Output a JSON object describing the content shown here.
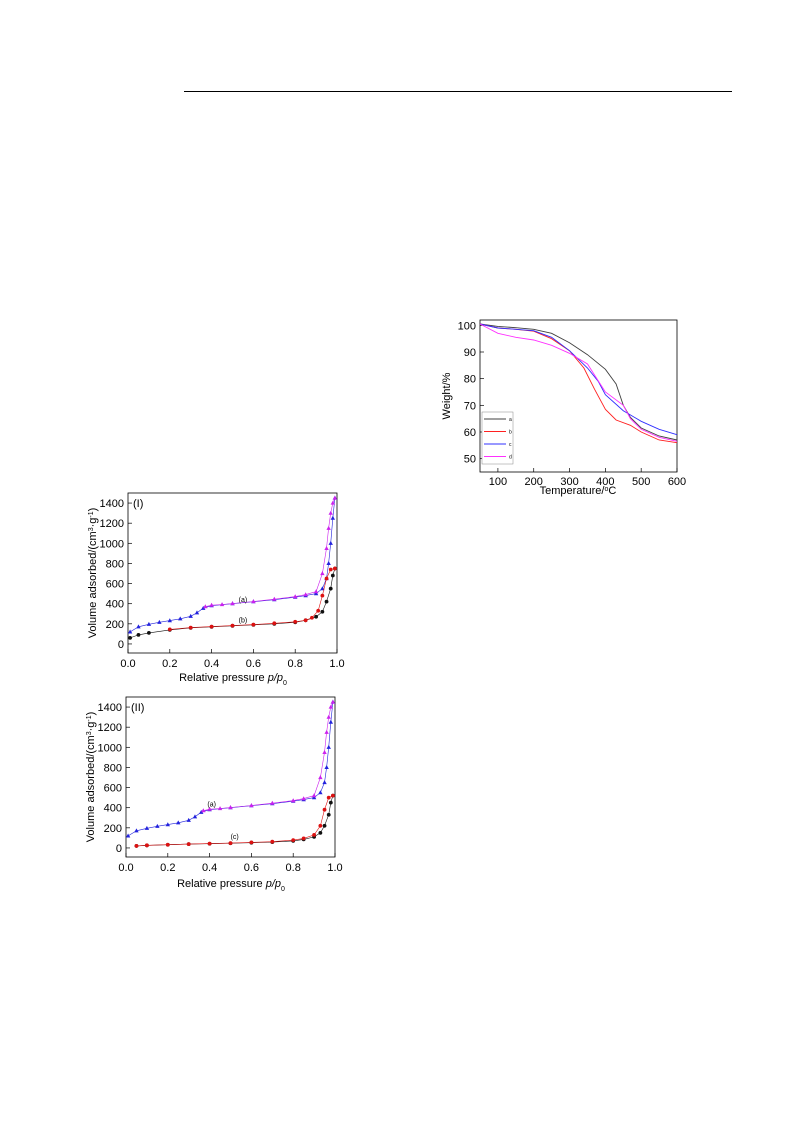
{
  "page": {
    "header_rule": true
  },
  "chart_data": [
    {
      "id": "tga",
      "type": "line",
      "xlabel_main": "Temperature/",
      "xlabel_sup": "o",
      "xlabel_unit": "C",
      "ylabel": "Weight/%",
      "xlim": [
        50,
        600
      ],
      "ylim": [
        45,
        102
      ],
      "xticks": [
        100,
        200,
        300,
        400,
        500,
        600
      ],
      "yticks": [
        50,
        60,
        70,
        80,
        90,
        100
      ],
      "legend_position": "bottom-left",
      "series": [
        {
          "name": "a",
          "color": "#404040",
          "x": [
            50,
            100,
            150,
            200,
            250,
            300,
            350,
            400,
            430,
            450,
            470,
            500,
            550,
            600
          ],
          "y": [
            100.5,
            99.6,
            99.1,
            98.5,
            97.0,
            93.5,
            89.0,
            83.5,
            78.0,
            70.0,
            65.5,
            61.5,
            58.5,
            57.0
          ]
        },
        {
          "name": "b",
          "color": "#ff2020",
          "x": [
            50,
            100,
            150,
            200,
            250,
            300,
            340,
            370,
            400,
            430,
            470,
            500,
            550,
            600
          ],
          "y": [
            100.5,
            99.0,
            98.5,
            97.8,
            95.0,
            90.5,
            84.0,
            76.0,
            68.5,
            64.5,
            62.5,
            60.0,
            57.0,
            56.0
          ]
        },
        {
          "name": "c",
          "color": "#3030ff",
          "x": [
            50,
            100,
            150,
            200,
            250,
            300,
            350,
            380,
            400,
            450,
            500,
            550,
            600
          ],
          "y": [
            100.5,
            99.0,
            98.5,
            98.0,
            95.5,
            90.5,
            84.0,
            79.0,
            74.0,
            68.0,
            64.0,
            61.0,
            59.0
          ]
        },
        {
          "name": "d",
          "color": "#ff30ff",
          "x": [
            50,
            100,
            150,
            200,
            250,
            300,
            350,
            400,
            450,
            470,
            500,
            550,
            600
          ],
          "y": [
            100.5,
            97.0,
            95.5,
            94.5,
            92.5,
            89.5,
            85.5,
            75.0,
            70.0,
            65.0,
            61.0,
            58.0,
            56.5
          ]
        }
      ]
    },
    {
      "id": "bet-1",
      "type": "scatter",
      "panel_label": "(I)",
      "xlabel_main": "Relative pressure ",
      "xlabel_italic": "p/p",
      "xlabel_sub": "0",
      "ylabel_main": "Volume adsorbed/(cm",
      "ylabel_sup1": "3",
      "ylabel_mid": "·g",
      "ylabel_sup2": "-1",
      "ylabel_end": ")",
      "xlim": [
        0,
        1.0
      ],
      "ylim": [
        -90,
        1500
      ],
      "xticks": [
        0.0,
        0.2,
        0.4,
        0.6,
        0.8,
        1.0
      ],
      "xtick_labels": [
        "0.0",
        "0.2",
        "0.4",
        "0.6",
        "0.8",
        "1.0"
      ],
      "yticks": [
        0,
        200,
        400,
        600,
        800,
        1000,
        1200,
        1400
      ],
      "annotations": [
        {
          "text": "(a)",
          "x": 0.55,
          "y": 415
        },
        {
          "text": "(b)",
          "x": 0.55,
          "y": 215
        }
      ],
      "series": [
        {
          "name": "(a) adsorption",
          "color": "#2222dd",
          "x": [
            0.01,
            0.05,
            0.1,
            0.15,
            0.2,
            0.25,
            0.3,
            0.33,
            0.36,
            0.4,
            0.5,
            0.6,
            0.7,
            0.8,
            0.85,
            0.9,
            0.93,
            0.95,
            0.96,
            0.97,
            0.98,
            0.99
          ],
          "y": [
            120,
            170,
            195,
            215,
            232,
            250,
            275,
            310,
            355,
            380,
            400,
            420,
            440,
            465,
            480,
            500,
            550,
            650,
            800,
            1000,
            1250,
            1450
          ]
        },
        {
          "name": "(a) desorption",
          "color": "#cc22ee",
          "x": [
            0.99,
            0.98,
            0.97,
            0.96,
            0.95,
            0.93,
            0.9,
            0.85,
            0.8,
            0.7,
            0.6,
            0.5,
            0.45,
            0.4,
            0.37
          ],
          "y": [
            1450,
            1400,
            1300,
            1150,
            950,
            700,
            520,
            490,
            470,
            445,
            422,
            402,
            392,
            385,
            370
          ]
        },
        {
          "name": "(b) adsorption",
          "color": "#111111",
          "x": [
            0.01,
            0.05,
            0.1,
            0.2,
            0.3,
            0.4,
            0.5,
            0.6,
            0.7,
            0.8,
            0.85,
            0.9,
            0.93,
            0.95,
            0.97,
            0.98,
            0.99
          ],
          "y": [
            60,
            90,
            110,
            140,
            160,
            170,
            180,
            190,
            200,
            215,
            235,
            270,
            320,
            420,
            550,
            680,
            750
          ]
        },
        {
          "name": "(b) desorption",
          "color": "#dd1111",
          "x": [
            0.99,
            0.97,
            0.95,
            0.93,
            0.91,
            0.88,
            0.85,
            0.8,
            0.7,
            0.6,
            0.5,
            0.4,
            0.3,
            0.2
          ],
          "y": [
            750,
            740,
            650,
            480,
            330,
            260,
            235,
            220,
            205,
            192,
            182,
            172,
            162,
            145
          ]
        }
      ]
    },
    {
      "id": "bet-2",
      "type": "scatter",
      "panel_label": "(II)",
      "xlabel_main": "Relative pressure ",
      "xlabel_italic": "p/p",
      "xlabel_sub": "0",
      "ylabel_main": "Volume adsorbed/(cm",
      "ylabel_sup1": "3",
      "ylabel_mid": "·g",
      "ylabel_sup2": "-1",
      "ylabel_end": ")",
      "xlim": [
        0,
        1.0
      ],
      "ylim": [
        -90,
        1500
      ],
      "xticks": [
        0.0,
        0.2,
        0.4,
        0.6,
        0.8,
        1.0
      ],
      "xtick_labels": [
        "0.0",
        "0.2",
        "0.4",
        "0.6",
        "0.8",
        "1.0"
      ],
      "yticks": [
        0,
        200,
        400,
        600,
        800,
        1000,
        1200,
        1400
      ],
      "annotations": [
        {
          "text": "(a)",
          "x": 0.41,
          "y": 410
        },
        {
          "text": "(c)",
          "x": 0.52,
          "y": 90
        }
      ],
      "series": [
        {
          "name": "(a) adsorption",
          "color": "#2222dd",
          "x": [
            0.01,
            0.05,
            0.1,
            0.15,
            0.2,
            0.25,
            0.3,
            0.33,
            0.36,
            0.4,
            0.5,
            0.6,
            0.7,
            0.8,
            0.85,
            0.9,
            0.93,
            0.95,
            0.96,
            0.97,
            0.98,
            0.99
          ],
          "y": [
            120,
            170,
            195,
            215,
            232,
            250,
            275,
            310,
            355,
            380,
            400,
            420,
            440,
            465,
            480,
            500,
            550,
            650,
            800,
            1000,
            1250,
            1450
          ]
        },
        {
          "name": "(a) desorption",
          "color": "#cc22ee",
          "x": [
            0.99,
            0.98,
            0.97,
            0.96,
            0.95,
            0.93,
            0.9,
            0.85,
            0.8,
            0.7,
            0.6,
            0.5,
            0.45,
            0.4,
            0.37
          ],
          "y": [
            1450,
            1400,
            1300,
            1150,
            950,
            700,
            520,
            490,
            470,
            445,
            422,
            402,
            392,
            385,
            370
          ]
        },
        {
          "name": "(c) adsorption",
          "color": "#111111",
          "x": [
            0.05,
            0.1,
            0.2,
            0.3,
            0.4,
            0.5,
            0.6,
            0.7,
            0.8,
            0.85,
            0.9,
            0.93,
            0.95,
            0.97,
            0.98,
            0.99
          ],
          "y": [
            20,
            25,
            32,
            38,
            42,
            47,
            52,
            58,
            70,
            85,
            110,
            150,
            220,
            330,
            450,
            520
          ]
        },
        {
          "name": "(c) desorption",
          "color": "#dd1111",
          "x": [
            0.99,
            0.97,
            0.95,
            0.93,
            0.9,
            0.85,
            0.8,
            0.7,
            0.6,
            0.5,
            0.4,
            0.3,
            0.2,
            0.1,
            0.05
          ],
          "y": [
            520,
            500,
            380,
            220,
            130,
            95,
            78,
            62,
            55,
            48,
            43,
            38,
            32,
            26,
            20
          ]
        }
      ]
    }
  ]
}
